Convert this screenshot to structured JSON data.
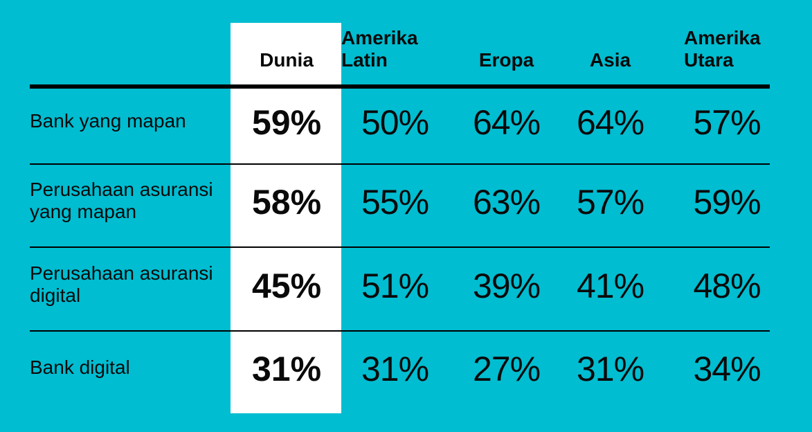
{
  "palette": {
    "background": "#00BDD1",
    "highlight_column_bg": "#FFFFFF",
    "text": "#0A0A0A",
    "rule_line": "#000000"
  },
  "table": {
    "columns": [
      {
        "id": "dunia",
        "label": "Dunia",
        "highlighted": true
      },
      {
        "id": "amerika_latin",
        "label": "Amerika Latin",
        "highlighted": false
      },
      {
        "id": "eropa",
        "label": "Eropa",
        "highlighted": false
      },
      {
        "id": "asia",
        "label": "Asia",
        "highlighted": false
      },
      {
        "id": "amerika_utara",
        "label": "Amerika Utara",
        "highlighted": false
      }
    ],
    "rows": [
      {
        "label": "Bank yang mapan",
        "values": [
          "59%",
          "50%",
          "64%",
          "64%",
          "57%"
        ]
      },
      {
        "label": "Perusahaan asuransi yang mapan",
        "values": [
          "58%",
          "55%",
          "63%",
          "57%",
          "59%"
        ]
      },
      {
        "label": "Perusahaan asuransi digital",
        "values": [
          "45%",
          "51%",
          "39%",
          "41%",
          "48%"
        ]
      },
      {
        "label": "Bank digital",
        "values": [
          "31%",
          "31%",
          "27%",
          "31%",
          "34%"
        ]
      }
    ]
  },
  "chart_data": {
    "type": "table",
    "unit": "%",
    "highlighted_column": "Dunia",
    "columns": [
      "Dunia",
      "Amerika Latin",
      "Eropa",
      "Asia",
      "Amerika Utara"
    ],
    "rows": [
      {
        "label": "Bank yang mapan",
        "values": [
          59,
          50,
          64,
          64,
          57
        ]
      },
      {
        "label": "Perusahaan asuransi yang mapan",
        "values": [
          58,
          55,
          63,
          57,
          59
        ]
      },
      {
        "label": "Perusahaan asuransi digital",
        "values": [
          45,
          51,
          39,
          41,
          48
        ]
      },
      {
        "label": "Bank digital",
        "values": [
          31,
          31,
          27,
          31,
          34
        ]
      }
    ]
  }
}
